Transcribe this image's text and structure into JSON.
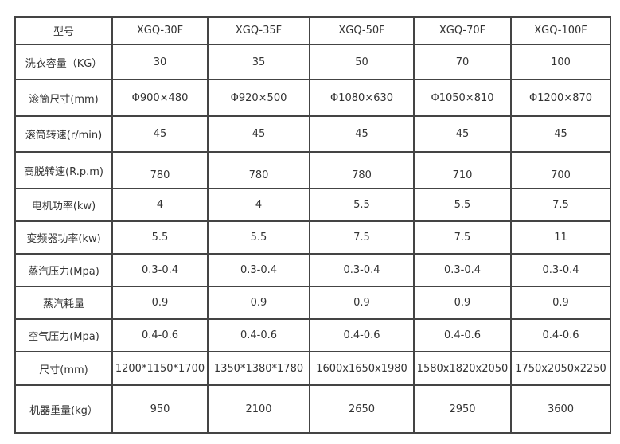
{
  "header": [
    "型号",
    "XGQ-30F",
    "XGQ-35F",
    "XGQ-50F",
    "XGQ-70F",
    "XGQ-100F"
  ],
  "rows": [
    [
      "洗衣容量（KG）",
      "30",
      "35",
      "50",
      "70",
      "100"
    ],
    [
      "滚筒尺寸(mm)",
      "Φ900×480",
      "Φ920×500",
      "Φ1080×630",
      "Φ1050×810",
      "Φ1200×870"
    ],
    [
      "滚筒转速(r/min)",
      "45",
      "45",
      "45",
      "45",
      "45"
    ],
    [
      "高脱转速(R.p.m)",
      "780",
      "780",
      "780",
      "710",
      "700"
    ],
    [
      "电机功率(kw)",
      "4",
      "4",
      "5.5",
      "5.5",
      "7.5"
    ],
    [
      "变频器功率(kw)",
      "5.5",
      "5.5",
      "7.5",
      "7.5",
      "11"
    ],
    [
      "蒸汽压力(Mpa)",
      "0.3-0.4",
      "0.3-0.4",
      "0.3-0.4",
      "0.3-0.4",
      "0.3-0.4"
    ],
    [
      "蒸汽耗量",
      "0.9",
      "0.9",
      "0.9",
      "0.9",
      "0.9"
    ],
    [
      "空气压力(Mpa)",
      "0.4-0.6",
      "0.4-0.6",
      "0.4-0.6",
      "0.4-0.6",
      "0.4-0.6"
    ],
    [
      "尺寸(mm)",
      "1200*1150*1700",
      "1350*1380*1780",
      "1600x1650x1980",
      "1580x1820x2050",
      "1750x2050x2250"
    ],
    [
      "机器重量(kg）",
      "950",
      "2100",
      "2650",
      "2950",
      "3600"
    ]
  ]
}
